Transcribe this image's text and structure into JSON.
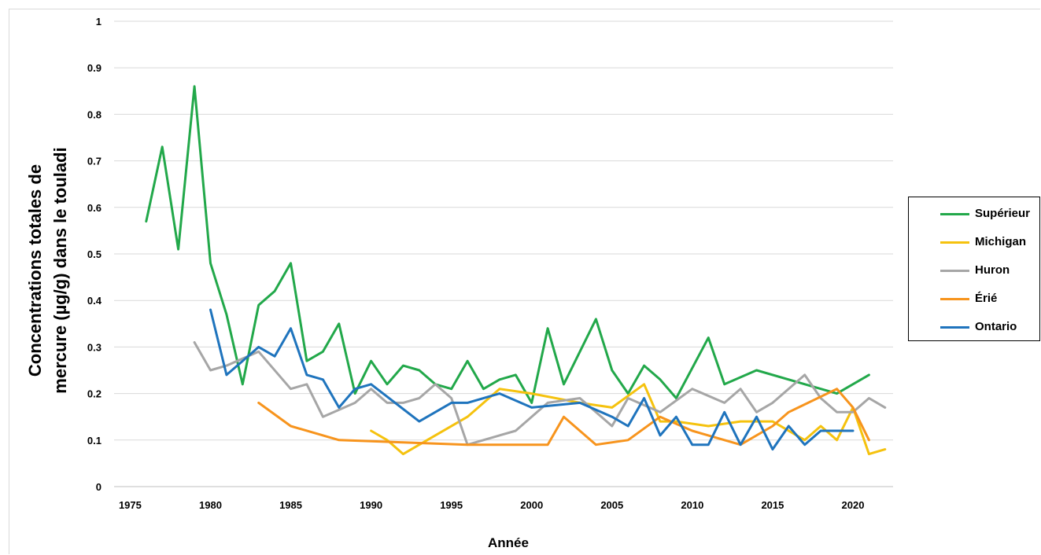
{
  "chart_data": {
    "type": "line",
    "title": "",
    "xlabel": "Année",
    "ylabel_lines": [
      "Concentrations totales de",
      "mercure (µg/g) dans le touladi"
    ],
    "xlim": [
      1974,
      2022.5
    ],
    "ylim": [
      0,
      1
    ],
    "x_ticks": [
      1975,
      1980,
      1985,
      1990,
      1995,
      2000,
      2005,
      2010,
      2015,
      2020
    ],
    "y_ticks": [
      0,
      0.1,
      0.2,
      0.3,
      0.4,
      0.5,
      0.6,
      0.7,
      0.8,
      0.9,
      1
    ],
    "y_tick_labels": [
      "0",
      "0.1",
      "0.2",
      "0.3",
      "0.4",
      "0.5",
      "0.6",
      "0.7",
      "0.8",
      "0.9",
      "1"
    ],
    "grid": true,
    "legend_position": "right",
    "series": [
      {
        "name": "Supérieur",
        "color": "#22a84a",
        "points": [
          [
            1976,
            0.57
          ],
          [
            1977,
            0.73
          ],
          [
            1978,
            0.51
          ],
          [
            1979,
            0.86
          ],
          [
            1980,
            0.48
          ],
          [
            1981,
            0.37
          ],
          [
            1982,
            0.22
          ],
          [
            1983,
            0.39
          ],
          [
            1984,
            0.42
          ],
          [
            1985,
            0.48
          ],
          [
            1986,
            0.27
          ],
          [
            1987,
            0.29
          ],
          [
            1988,
            0.35
          ],
          [
            1989,
            0.2
          ],
          [
            1990,
            0.27
          ],
          [
            1991,
            0.22
          ],
          [
            1992,
            0.26
          ],
          [
            1993,
            0.25
          ],
          [
            1994,
            0.22
          ],
          [
            1995,
            0.21
          ],
          [
            1996,
            0.27
          ],
          [
            1997,
            0.21
          ],
          [
            1998,
            0.23
          ],
          [
            1999,
            0.24
          ],
          [
            2000,
            0.18
          ],
          [
            2001,
            0.34
          ],
          [
            2002,
            0.22
          ],
          [
            2004,
            0.36
          ],
          [
            2005,
            0.25
          ],
          [
            2006,
            0.2
          ],
          [
            2007,
            0.26
          ],
          [
            2008,
            0.23
          ],
          [
            2009,
            0.19
          ],
          [
            2011,
            0.32
          ],
          [
            2012,
            0.22
          ],
          [
            2014,
            0.25
          ],
          [
            2019,
            0.2
          ],
          [
            2021,
            0.24
          ]
        ]
      },
      {
        "name": "Michigan",
        "color": "#f5c20e",
        "points": [
          [
            1990,
            0.12
          ],
          [
            1991,
            0.1
          ],
          [
            1992,
            0.07
          ],
          [
            1993,
            0.09
          ],
          [
            1996,
            0.15
          ],
          [
            1998,
            0.21
          ],
          [
            2000,
            0.2
          ],
          [
            2003,
            0.18
          ],
          [
            2005,
            0.17
          ],
          [
            2007,
            0.22
          ],
          [
            2008,
            0.14
          ],
          [
            2009,
            0.14
          ],
          [
            2011,
            0.13
          ],
          [
            2013,
            0.14
          ],
          [
            2014,
            0.14
          ],
          [
            2015,
            0.14
          ],
          [
            2017,
            0.1
          ],
          [
            2018,
            0.13
          ],
          [
            2019,
            0.1
          ],
          [
            2020,
            0.17
          ],
          [
            2021,
            0.07
          ],
          [
            2022,
            0.08
          ]
        ]
      },
      {
        "name": "Huron",
        "color": "#a6a6a6",
        "points": [
          [
            1979,
            0.31
          ],
          [
            1980,
            0.25
          ],
          [
            1981,
            0.26
          ],
          [
            1983,
            0.29
          ],
          [
            1985,
            0.21
          ],
          [
            1986,
            0.22
          ],
          [
            1987,
            0.15
          ],
          [
            1989,
            0.18
          ],
          [
            1990,
            0.21
          ],
          [
            1991,
            0.18
          ],
          [
            1992,
            0.18
          ],
          [
            1993,
            0.19
          ],
          [
            1994,
            0.22
          ],
          [
            1995,
            0.19
          ],
          [
            1996,
            0.09
          ],
          [
            1999,
            0.12
          ],
          [
            2001,
            0.18
          ],
          [
            2003,
            0.19
          ],
          [
            2005,
            0.13
          ],
          [
            2006,
            0.19
          ],
          [
            2008,
            0.16
          ],
          [
            2010,
            0.21
          ],
          [
            2012,
            0.18
          ],
          [
            2013,
            0.21
          ],
          [
            2014,
            0.16
          ],
          [
            2015,
            0.18
          ],
          [
            2017,
            0.24
          ],
          [
            2018,
            0.19
          ],
          [
            2019,
            0.16
          ],
          [
            2020,
            0.16
          ],
          [
            2021,
            0.19
          ],
          [
            2022,
            0.17
          ]
        ]
      },
      {
        "name": "Érié",
        "color": "#f7941d",
        "points": [
          [
            1983,
            0.18
          ],
          [
            1985,
            0.13
          ],
          [
            1988,
            0.1
          ],
          [
            1992,
            0.095
          ],
          [
            1996,
            0.09
          ],
          [
            2001,
            0.09
          ],
          [
            2002,
            0.15
          ],
          [
            2004,
            0.09
          ],
          [
            2006,
            0.1
          ],
          [
            2008,
            0.15
          ],
          [
            2010,
            0.12
          ],
          [
            2013,
            0.09
          ],
          [
            2015,
            0.13
          ],
          [
            2016,
            0.16
          ],
          [
            2019,
            0.21
          ],
          [
            2020,
            0.17
          ],
          [
            2021,
            0.1
          ]
        ]
      },
      {
        "name": "Ontario",
        "color": "#1f74bd",
        "points": [
          [
            1980,
            0.38
          ],
          [
            1981,
            0.24
          ],
          [
            1982,
            0.27
          ],
          [
            1983,
            0.3
          ],
          [
            1984,
            0.28
          ],
          [
            1985,
            0.34
          ],
          [
            1986,
            0.24
          ],
          [
            1987,
            0.23
          ],
          [
            1988,
            0.17
          ],
          [
            1989,
            0.21
          ],
          [
            1990,
            0.22
          ],
          [
            1993,
            0.14
          ],
          [
            1995,
            0.18
          ],
          [
            1996,
            0.18
          ],
          [
            1998,
            0.2
          ],
          [
            2000,
            0.17
          ],
          [
            2003,
            0.18
          ],
          [
            2005,
            0.15
          ],
          [
            2006,
            0.13
          ],
          [
            2007,
            0.19
          ],
          [
            2008,
            0.11
          ],
          [
            2009,
            0.15
          ],
          [
            2010,
            0.09
          ],
          [
            2011,
            0.09
          ],
          [
            2012,
            0.16
          ],
          [
            2013,
            0.09
          ],
          [
            2014,
            0.15
          ],
          [
            2015,
            0.08
          ],
          [
            2016,
            0.13
          ],
          [
            2017,
            0.09
          ],
          [
            2018,
            0.12
          ],
          [
            2020,
            0.12
          ]
        ]
      }
    ]
  }
}
